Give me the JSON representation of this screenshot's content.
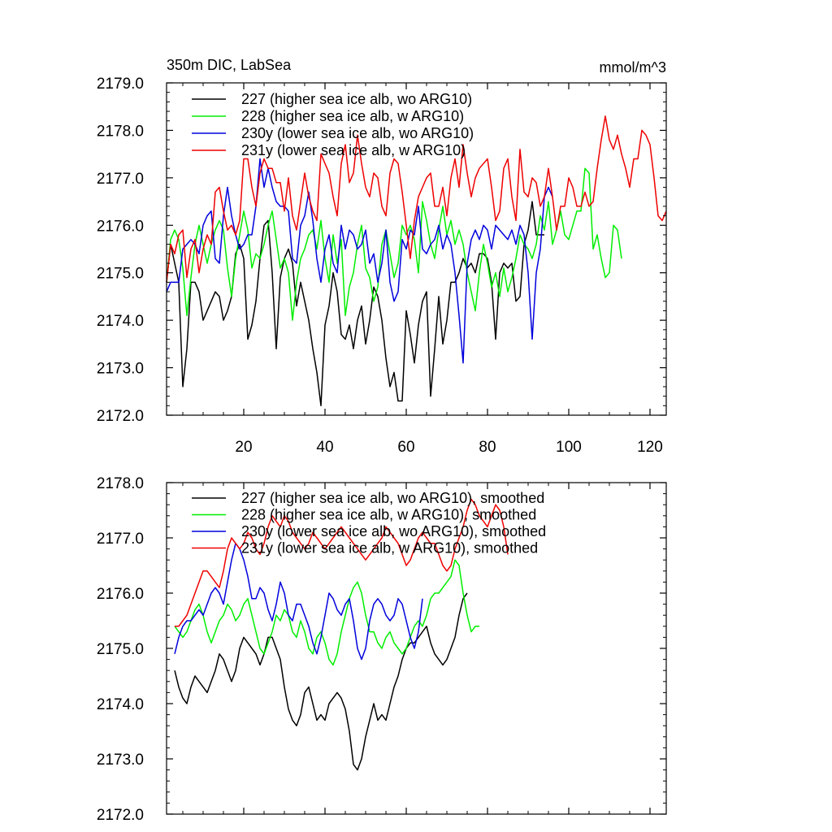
{
  "chart_data": [
    {
      "type": "line",
      "title": "350m DIC, LabSea",
      "units": "mmol/m^3",
      "xlim": [
        1,
        124
      ],
      "ylim": [
        2172.0,
        2179.0
      ],
      "x_ticks": [
        20,
        40,
        60,
        80,
        100,
        120
      ],
      "y_ticks": [
        "2172.0",
        "2173.0",
        "2174.0",
        "2175.0",
        "2176.0",
        "2177.0",
        "2178.0",
        "2179.0"
      ],
      "legend_position": "top-left",
      "series": [
        {
          "name": "227 (higher sea ice alb, wo ARG10)",
          "color": "#000000",
          "x_start": 1,
          "values": [
            2174.8,
            2175.6,
            2175.2,
            2174.8,
            2172.6,
            2173.4,
            2174.8,
            2174.8,
            2174.6,
            2174.0,
            2174.2,
            2174.4,
            2174.6,
            2174.5,
            2174.0,
            2174.2,
            2174.5,
            2175.4,
            2175.6,
            2175.3,
            2173.6,
            2173.9,
            2174.4,
            2175.3,
            2176.0,
            2176.1,
            2175.0,
            2173.4,
            2174.9,
            2175.3,
            2175.5,
            2175.2,
            2174.3,
            2174.8,
            2174.4,
            2174.0,
            2173.4,
            2172.9,
            2172.2,
            2173.9,
            2174.3,
            2175.0,
            2174.6,
            2173.7,
            2173.6,
            2173.9,
            2173.4,
            2174.0,
            2174.3,
            2173.5,
            2174.0,
            2174.7,
            2174.5,
            2174.0,
            2173.2,
            2172.6,
            2172.9,
            2172.3,
            2172.3,
            2174.2,
            2173.7,
            2173.1,
            2173.9,
            2174.4,
            2174.6,
            2172.4,
            2173.4,
            2174.5,
            2173.5,
            2174.0,
            2174.8,
            2174.8,
            2175.0,
            2175.3,
            2175.1,
            2175.2,
            2175.0,
            2175.4,
            2175.4,
            2175.3,
            2174.8,
            2173.6,
            2175.0,
            2175.2,
            2175.1,
            2175.2,
            2174.4,
            2174.5,
            2175.6,
            2175.9,
            2176.5,
            2175.8,
            2175.8,
            2175.8
          ]
        },
        {
          "name": "228 (higher sea ice alb, w ARG10)",
          "color": "#00ee00",
          "x_start": 1,
          "values": [
            2174.8,
            2175.7,
            2175.9,
            2175.7,
            2175.1,
            2174.1,
            2174.9,
            2175.6,
            2176.0,
            2175.6,
            2175.2,
            2175.6,
            2175.9,
            2176.1,
            2175.9,
            2175.1,
            2174.5,
            2175.3,
            2175.8,
            2176.3,
            2175.9,
            2175.1,
            2175.4,
            2175.3,
            2175.6,
            2176.0,
            2176.3,
            2175.7,
            2175.1,
            2175.3,
            2175.0,
            2174.0,
            2174.8,
            2175.3,
            2175.5,
            2175.8,
            2175.9,
            2175.5,
            2176.1,
            2175.3,
            2174.8,
            2175.8,
            2175.2,
            2175.7,
            2174.1,
            2174.7,
            2175.0,
            2175.6,
            2176.0,
            2175.1,
            2174.9,
            2174.4,
            2174.7,
            2175.6,
            2175.9,
            2175.4,
            2174.9,
            2175.2,
            2176.0,
            2175.8,
            2176.0,
            2175.7,
            2175.0,
            2176.5,
            2176.1,
            2175.6,
            2175.3,
            2175.9,
            2176.4,
            2175.8,
            2176.1,
            2175.6,
            2175.9,
            2175.6,
            2175.0,
            2174.6,
            2174.2,
            2175.0,
            2175.6,
            2175.2,
            2174.7,
            2175.0,
            2174.5,
            2175.1,
            2174.6,
            2174.9,
            2175.3,
            2175.8,
            2175.6,
            2175.5,
            2175.3,
            2175.6,
            2176.2,
            2175.9,
            2176.5,
            2175.6,
            2175.9,
            2176.3,
            2175.8,
            2175.7,
            2176.0,
            2176.3,
            2176.3,
            2177.2,
            2177.1,
            2175.5,
            2175.8,
            2175.3,
            2174.9,
            2175.0,
            2176.0,
            2175.9,
            2175.3
          ]
        },
        {
          "name": "230y (lower sea ice alb, wo ARG10)",
          "color": "#0000dd",
          "x_start": 1,
          "values": [
            2174.6,
            2174.8,
            2174.8,
            2174.8,
            2175.5,
            2175.6,
            2175.7,
            2175.6,
            2175.4,
            2176.0,
            2176.2,
            2176.3,
            2175.3,
            2175.2,
            2176.2,
            2176.8,
            2176.2,
            2175.8,
            2175.5,
            2175.6,
            2175.8,
            2175.8,
            2176.4,
            2177.4,
            2176.8,
            2177.2,
            2176.8,
            2176.5,
            2176.4,
            2176.4,
            2176.3,
            2175.3,
            2175.2,
            2176.0,
            2176.2,
            2176.7,
            2176.1,
            2175.3,
            2174.8,
            2175.5,
            2175.8,
            2175.2,
            2175.0,
            2176.0,
            2175.5,
            2175.9,
            2175.8,
            2175.5,
            2175.6,
            2175.9,
            2175.2,
            2175.4,
            2174.8,
            2175.2,
            2175.9,
            2174.8,
            2174.4,
            2174.6,
            2175.7,
            2175.5,
            2175.9,
            2175.8,
            2176.4,
            2175.5,
            2175.4,
            2175.6,
            2175.7,
            2176.0,
            2175.5,
            2175.8,
            2175.6,
            2175.0,
            2174.1,
            2173.1,
            2175.2,
            2175.7,
            2175.9,
            2175.7,
            2176.0,
            2175.9,
            2175.5,
            2176.0,
            2175.9,
            2175.8,
            2175.7,
            2175.9,
            2175.6,
            2176.0,
            2175.8,
            2175.0,
            2173.6,
            2175.0,
            2175.5,
            2176.6,
            2176.8,
            2176.6
          ]
        },
        {
          "name": "231y (lower sea ice alb, w ARG10)",
          "color": "#ee0000",
          "x_start": 1,
          "values": [
            2174.8,
            2175.6,
            2175.4,
            2175.8,
            2175.9,
            2174.9,
            2175.5,
            2175.7,
            2175.0,
            2175.5,
            2175.8,
            2175.6,
            2176.7,
            2176.8,
            2176.3,
            2175.9,
            2176.0,
            2175.8,
            2176.1,
            2177.4,
            2177.4,
            2176.8,
            2176.4,
            2177.1,
            2177.4,
            2177.2,
            2177.2,
            2176.9,
            2176.9,
            2176.3,
            2177.0,
            2176.2,
            2175.9,
            2176.5,
            2177.1,
            2176.6,
            2176.3,
            2176.1,
            2177.5,
            2177.3,
            2177.1,
            2176.6,
            2176.2,
            2177.3,
            2177.7,
            2176.9,
            2177.1,
            2177.9,
            2177.3,
            2176.8,
            2176.6,
            2177.1,
            2177.0,
            2176.4,
            2176.2,
            2177.1,
            2177.4,
            2177.3,
            2176.7,
            2176.0,
            2175.3,
            2176.1,
            2176.6,
            2176.8,
            2177.0,
            2177.1,
            2176.4,
            2176.4,
            2176.8,
            2176.2,
            2177.0,
            2177.4,
            2176.8,
            2177.7,
            2177.1,
            2176.6,
            2177.0,
            2177.2,
            2177.3,
            2177.4,
            2176.8,
            2176.1,
            2176.3,
            2177.2,
            2177.4,
            2176.6,
            2176.1,
            2177.6,
            2176.7,
            2176.6,
            2177.0,
            2176.9,
            2176.4,
            2176.6,
            2177.2,
            2176.6,
            2175.9,
            2176.4,
            2176.4,
            2177.0,
            2176.8,
            2176.4,
            2176.4,
            2176.7,
            2176.4,
            2176.5,
            2177.2,
            2177.8,
            2178.3,
            2177.8,
            2177.6,
            2177.9,
            2177.5,
            2177.2,
            2176.8,
            2177.4,
            2177.4,
            2178.0,
            2177.9,
            2177.7,
            2177.0,
            2176.2,
            2176.1,
            2176.3
          ]
        }
      ]
    },
    {
      "type": "line",
      "xlim": [
        1,
        124
      ],
      "ylim": [
        2172.0,
        2178.0
      ],
      "y_ticks": [
        "2172.0",
        "2173.0",
        "2174.0",
        "2175.0",
        "2176.0",
        "2177.0",
        "2178.0"
      ],
      "x_tick_positions": [
        20,
        40,
        60,
        80,
        100,
        120
      ],
      "legend_position": "top-left",
      "series": [
        {
          "name": "227 (higher sea ice alb, wo ARG10), smoothed",
          "color": "#000000",
          "x_start": 3,
          "values": [
            2174.6,
            2174.3,
            2174.1,
            2174.0,
            2174.3,
            2174.5,
            2174.4,
            2174.3,
            2174.2,
            2174.4,
            2174.6,
            2174.9,
            2174.8,
            2174.6,
            2174.4,
            2174.6,
            2175.0,
            2175.2,
            2175.1,
            2175.0,
            2174.9,
            2174.7,
            2174.9,
            2175.2,
            2175.2,
            2175.0,
            2174.8,
            2174.3,
            2173.9,
            2173.7,
            2173.6,
            2173.8,
            2174.2,
            2174.3,
            2174.0,
            2173.7,
            2173.8,
            2173.7,
            2174.0,
            2174.1,
            2174.2,
            2174.1,
            2173.9,
            2173.5,
            2172.9,
            2172.8,
            2173.0,
            2173.4,
            2173.7,
            2174.0,
            2173.7,
            2173.8,
            2173.7,
            2174.0,
            2174.3,
            2174.5,
            2174.8,
            2175.0,
            2175.1,
            2175.1,
            2175.2,
            2175.3,
            2175.4,
            2175.1,
            2174.9,
            2174.8,
            2174.7,
            2174.8,
            2175.0,
            2175.2,
            2175.6,
            2175.9,
            2176.0
          ]
        },
        {
          "name": "228 (higher sea ice alb, w ARG10), smoothed",
          "color": "#00ee00",
          "x_start": 3,
          "values": [
            2175.4,
            2175.3,
            2175.2,
            2175.3,
            2175.5,
            2175.7,
            2175.8,
            2175.6,
            2175.3,
            2175.1,
            2175.3,
            2175.5,
            2175.6,
            2175.8,
            2175.7,
            2175.5,
            2175.6,
            2175.8,
            2175.9,
            2175.6,
            2175.3,
            2175.0,
            2174.9,
            2175.1,
            2175.3,
            2175.6,
            2175.5,
            2175.7,
            2175.6,
            2175.3,
            2175.2,
            2175.5,
            2175.3,
            2175.0,
            2174.9,
            2175.2,
            2175.3,
            2175.1,
            2174.8,
            2174.7,
            2174.9,
            2175.3,
            2175.6,
            2175.9,
            2176.1,
            2176.2,
            2176.0,
            2175.6,
            2175.3,
            2175.3,
            2175.1,
            2175.0,
            2175.2,
            2175.3,
            2175.1,
            2175.0,
            2174.9,
            2175.0,
            2175.2,
            2175.4,
            2175.5,
            2175.4,
            2175.6,
            2175.9,
            2176.0,
            2176.0,
            2176.1,
            2176.2,
            2176.3,
            2176.6,
            2176.5,
            2176.0,
            2175.6,
            2175.3,
            2175.4,
            2175.4
          ]
        },
        {
          "name": "230y (lower sea ice alb, wo ARG10), smoothed",
          "color": "#0000dd",
          "x_start": 3,
          "values": [
            2174.9,
            2175.2,
            2175.4,
            2175.5,
            2175.5,
            2175.6,
            2175.7,
            2175.6,
            2175.8,
            2176.0,
            2176.1,
            2176.0,
            2175.8,
            2176.2,
            2176.6,
            2176.9,
            2176.8,
            2176.6,
            2176.3,
            2175.9,
            2175.9,
            2176.1,
            2176.0,
            2175.7,
            2175.5,
            2175.8,
            2176.2,
            2176.0,
            2175.6,
            2175.5,
            2175.8,
            2175.8,
            2175.6,
            2175.4,
            2175.1,
            2174.9,
            2175.2,
            2175.6,
            2176.0,
            2175.9,
            2175.7,
            2175.6,
            2175.8,
            2175.9,
            2175.5,
            2175.0,
            2174.8,
            2175.0,
            2175.5,
            2175.8,
            2175.9,
            2175.8,
            2175.6,
            2175.5,
            2175.6,
            2175.9,
            2175.8,
            2175.5,
            2175.2,
            2175.0,
            2175.3,
            2175.9
          ]
        },
        {
          "name": "231y (lower sea ice alb, w ARG10), smoothed",
          "color": "#ee0000",
          "x_start": 3,
          "values": [
            2175.4,
            2175.4,
            2175.5,
            2175.6,
            2175.8,
            2176.0,
            2176.2,
            2176.4,
            2176.4,
            2176.3,
            2176.2,
            2176.1,
            2176.4,
            2176.8,
            2177.0,
            2176.9,
            2176.8,
            2176.9,
            2177.1,
            2177.0,
            2176.8,
            2176.7,
            2176.9,
            2177.2,
            2177.4,
            2177.3,
            2177.2,
            2177.4,
            2177.3,
            2177.1,
            2177.0,
            2176.9,
            2176.8,
            2176.9,
            2177.1,
            2177.0,
            2176.9,
            2176.8,
            2176.9,
            2177.0,
            2177.1,
            2177.2,
            2177.1,
            2177.0,
            2176.9,
            2176.8,
            2176.7,
            2176.6,
            2176.7,
            2176.8,
            2176.9,
            2177.0,
            2177.2,
            2177.1,
            2177.0,
            2176.9,
            2176.7,
            2176.5,
            2176.6,
            2176.8,
            2177.0,
            2177.1,
            2177.0,
            2176.9,
            2176.9,
            2176.7,
            2176.5,
            2176.4,
            2176.5,
            2176.8,
            2177.0,
            2177.2,
            2177.5,
            2177.7,
            2177.6,
            2177.4,
            2177.3,
            2177.2,
            2177.4,
            2177.6,
            2177.5,
            2177.2,
            2176.7
          ]
        }
      ]
    }
  ]
}
